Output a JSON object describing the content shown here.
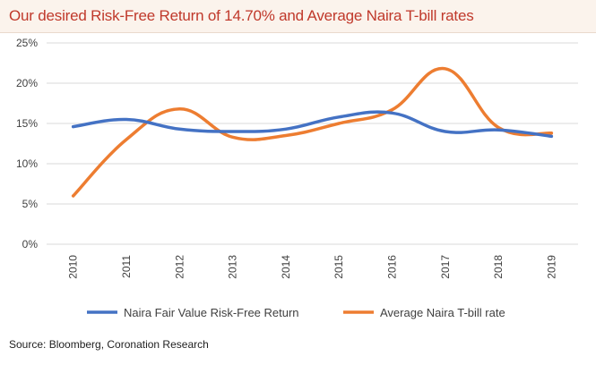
{
  "title": "Our desired Risk-Free Return of  14.70% and Average Naira T-bill rates",
  "source": "Source: Bloomberg, Coronation Research",
  "colors": {
    "title": "#c0392b",
    "series_blue": "#4472c4",
    "series_orange": "#ed7d31",
    "grid": "#d9d9d9",
    "axis_text": "#404040"
  },
  "chart_data": {
    "type": "line",
    "title": "",
    "xlabel": "",
    "ylabel": "",
    "grid": true,
    "smooth": true,
    "legend_position": "bottom",
    "categories": [
      "2010",
      "2011",
      "2012",
      "2013",
      "2014",
      "2015",
      "2016",
      "2017",
      "2018",
      "2019"
    ],
    "ylim": [
      0,
      25
    ],
    "yticks": [
      0,
      5,
      10,
      15,
      20,
      25
    ],
    "ytick_labels": [
      "0%",
      "5%",
      "10%",
      "15%",
      "20%",
      "25%"
    ],
    "series": [
      {
        "name": "Naira Fair Value Risk-Free Return",
        "color": "#4472c4",
        "values": [
          14.6,
          15.5,
          14.3,
          14.0,
          14.3,
          15.8,
          16.3,
          14.0,
          14.2,
          13.4
        ]
      },
      {
        "name": "Average Naira T-bill rate",
        "color": "#ed7d31",
        "values": [
          6.0,
          13.0,
          16.8,
          13.3,
          13.5,
          15.0,
          16.7,
          21.8,
          14.5,
          13.8
        ]
      }
    ]
  }
}
